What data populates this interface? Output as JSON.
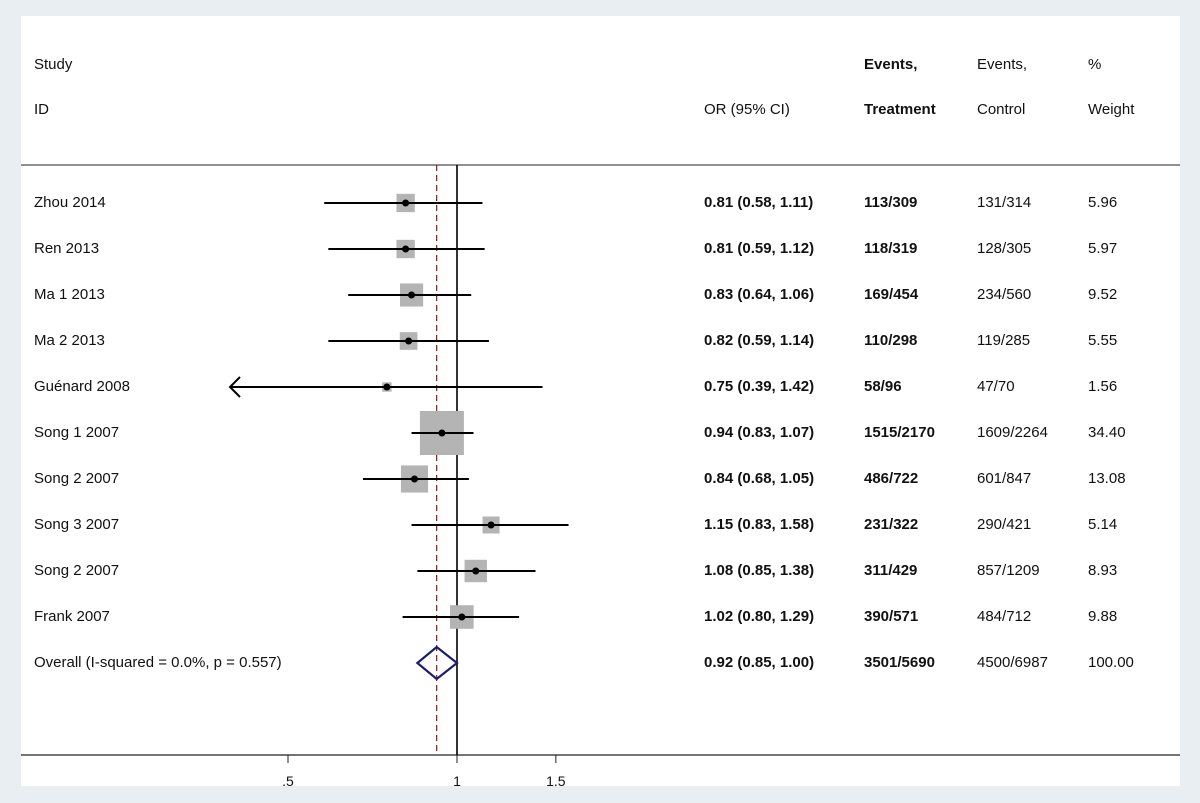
{
  "chart_data": {
    "type": "forest",
    "headers": {
      "study_line1": "Study",
      "study_line2": "ID",
      "or": "OR (95% CI)",
      "treat_line1": "Events,",
      "treat_line2": "Treatment",
      "control_line1": "Events,",
      "control_line2": "Control",
      "weight_line1": "%",
      "weight_line2": "Weight"
    },
    "studies": [
      {
        "id": "Zhou 2014",
        "or": 0.81,
        "lo": 0.58,
        "hi": 1.11,
        "ci_text": "0.81 (0.58, 1.11)",
        "treatment": "113/309",
        "control": "131/314",
        "weight": "5.96",
        "weight_value": 5.96
      },
      {
        "id": "Ren 2013",
        "or": 0.81,
        "lo": 0.59,
        "hi": 1.12,
        "ci_text": "0.81 (0.59, 1.12)",
        "treatment": "118/319",
        "control": "128/305",
        "weight": "5.97",
        "weight_value": 5.97
      },
      {
        "id": "Ma 1 2013",
        "or": 0.83,
        "lo": 0.64,
        "hi": 1.06,
        "ci_text": "0.83 (0.64, 1.06)",
        "treatment": "169/454",
        "control": "234/560",
        "weight": "9.52",
        "weight_value": 9.52
      },
      {
        "id": "Ma 2 2013",
        "or": 0.82,
        "lo": 0.59,
        "hi": 1.14,
        "ci_text": "0.82 (0.59, 1.14)",
        "treatment": "110/298",
        "control": "119/285",
        "weight": "5.55",
        "weight_value": 5.55
      },
      {
        "id": "Guénard 2008",
        "or": 0.75,
        "lo": 0.39,
        "hi": 1.42,
        "ci_text": "0.75 (0.39, 1.42)",
        "treatment": "58/96",
        "control": "47/70",
        "weight": "1.56",
        "weight_value": 1.56
      },
      {
        "id": "Song 1 2007",
        "or": 0.94,
        "lo": 0.83,
        "hi": 1.07,
        "ci_text": "0.94 (0.83, 1.07)",
        "treatment": "1515/2170",
        "control": "1609/2264",
        "weight": "34.40",
        "weight_value": 34.4
      },
      {
        "id": "Song 2 2007",
        "or": 0.84,
        "lo": 0.68,
        "hi": 1.05,
        "ci_text": "0.84 (0.68, 1.05)",
        "treatment": "486/722",
        "control": "601/847",
        "weight": "13.08",
        "weight_value": 13.08
      },
      {
        "id": "Song 3 2007",
        "or": 1.15,
        "lo": 0.83,
        "hi": 1.58,
        "ci_text": "1.15 (0.83, 1.58)",
        "treatment": "231/322",
        "control": "290/421",
        "weight": "5.14",
        "weight_value": 5.14
      },
      {
        "id": "Song 2 2007",
        "or": 1.08,
        "lo": 0.85,
        "hi": 1.38,
        "ci_text": "1.08 (0.85, 1.38)",
        "treatment": "311/429",
        "control": "857/1209",
        "weight": "8.93",
        "weight_value": 8.93
      },
      {
        "id": "Frank 2007",
        "or": 1.02,
        "lo": 0.8,
        "hi": 1.29,
        "ci_text": "1.02 (0.80, 1.29)",
        "treatment": "390/571",
        "control": "484/712",
        "weight": "9.88",
        "weight_value": 9.88
      }
    ],
    "overall": {
      "label": "Overall  (I-squared = 0.0%, p = 0.557)",
      "or": 0.92,
      "lo": 0.85,
      "hi": 1.0,
      "ci_text": "0.92 (0.85, 1.00)",
      "treatment": "3501/5690",
      "control": "4500/6987",
      "weight": "100.00"
    },
    "x_ticks": [
      {
        "value": 0.5,
        "label": ".5"
      },
      {
        "value": 1,
        "label": "1"
      },
      {
        "value": 1.5,
        "label": "1.5"
      }
    ],
    "x_scale": "log",
    "null_line": 1,
    "colors": {
      "page_background": "#e8eef2",
      "panel": "#ffffff",
      "weight_box": "#b4b4b4",
      "ci_line": "#000000",
      "overall_diamond": "#1c1c6e",
      "pooled_line": "#8b1a1a"
    }
  }
}
